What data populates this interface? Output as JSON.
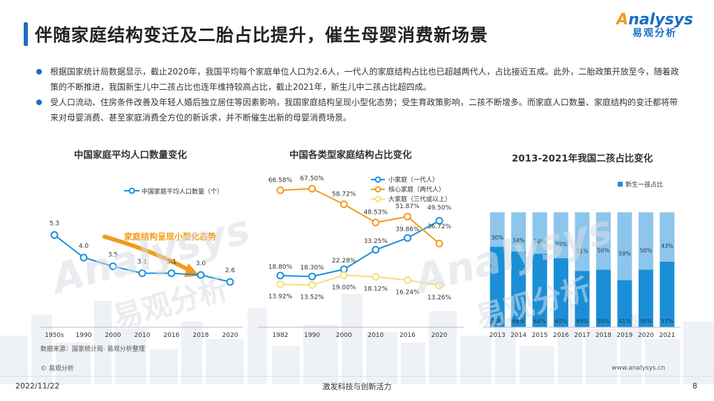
{
  "header": {
    "title": "伴随家庭结构变迁及二胎占比提升，催生母婴消费新场景",
    "logo_en_a": "A",
    "logo_en_rest": "nalysys",
    "logo_cn": "易观分析"
  },
  "bullets": [
    "根据国家统计局数据显示，截止2020年，我国平均每个家庭单位人口为2.6人，一代人的家庭结构占比也已超越两代人，占比接近五成。此外，二胎政策开放至今，随着政策的不断推进，我国新生儿中二孩占比也连年维持较高占比，截止2021年，新生儿中二孩占比超四成。",
    "受人口流动、住房条件改善及年轻人婚后独立居住等因素影响，我国家庭结构呈现小型化态势；受生育政策影响，二孩不断增多。而家庭人口数量、家庭结构的变迁都将带来对母婴消费、甚至家庭消费全方位的新诉求，并不断催生出新的母婴消费场景。"
  ],
  "chart_data": [
    {
      "type": "line",
      "title": "中国家庭平均人口数量变化",
      "categories": [
        "1950s",
        "1990",
        "2000",
        "2010",
        "2016",
        "2018",
        "2020"
      ],
      "series": [
        {
          "name": "中国家庭平均人口数量（个）",
          "values": [
            5.3,
            4.0,
            3.5,
            3.1,
            3.1,
            3.0,
            2.6
          ],
          "color": "#1a8fd8"
        }
      ],
      "ylim": [
        0,
        8
      ],
      "annotation": "家庭结构呈现小型化态势",
      "annotation_color": "#f39b1b",
      "grid": false
    },
    {
      "type": "line",
      "title": "中国各类型家庭结构占比变化",
      "categories": [
        "1982",
        "1990",
        "2000",
        "2010",
        "2016",
        "2020"
      ],
      "series": [
        {
          "name": "小家庭（一代人）",
          "values": [
            18.8,
            18.3,
            22.28,
            33.25,
            39.86,
            49.5
          ],
          "color": "#1a8fd8",
          "labels": [
            "18.80%",
            "18.30%",
            "22.28%",
            "33.25%",
            "39.86%",
            "49.50%"
          ]
        },
        {
          "name": "核心家庭（两代人）",
          "values": [
            66.58,
            67.5,
            58.72,
            48.53,
            51.87,
            36.72
          ],
          "color": "#f39b1b",
          "labels": [
            "66.58%",
            "67.50%",
            "58.72%",
            "48.53%",
            "51.87%",
            "36.72%"
          ]
        },
        {
          "name": "大家庭（三代或以上）",
          "values": [
            13.92,
            13.52,
            19.0,
            18.12,
            16.24,
            13.26
          ],
          "color": "#f5de7a",
          "labels": [
            "13.92%",
            "13.52%",
            "19.00%",
            "18.12%",
            "16.24%",
            "13.26%"
          ]
        }
      ],
      "ylim": [
        0,
        80
      ],
      "grid": false,
      "legend": "top-right"
    },
    {
      "type": "bar",
      "stacked": true,
      "title": "2013-2021年我国二孩占比变化",
      "categories": [
        "2013",
        "2014",
        "2015",
        "2016",
        "2017",
        "2018",
        "2019",
        "2020",
        "2021"
      ],
      "series": [
        {
          "name": "新生一孩占比",
          "values": [
            70,
            66,
            64,
            60,
            49,
            50,
            41,
            50,
            57
          ],
          "color": "#1a8fd8",
          "labels": [
            "70%",
            "66%",
            "64%",
            "60%",
            "49%",
            "50%",
            "41%",
            "50%",
            "57%"
          ]
        },
        {
          "name": "",
          "values": [
            30,
            34,
            36,
            40,
            51,
            50,
            59,
            50,
            43
          ],
          "color": "#8cc6ec",
          "labels": [
            "30%",
            "34%",
            "36%",
            "40%",
            "51%",
            "50%",
            "59%",
            "50%",
            "43%"
          ]
        }
      ],
      "ylim": [
        0,
        100
      ],
      "grid": false,
      "legend": "top-right"
    }
  ],
  "footer": {
    "source": "数据来源：国家统计局· 易观分析整理",
    "copyright": "© 易观分析",
    "website": "www.analysys.cn",
    "date": "2022/11/22",
    "slogan": "激发科技与创新活力",
    "page": "8"
  },
  "watermark": {
    "en": "Analysys",
    "cn": "易观分析"
  }
}
